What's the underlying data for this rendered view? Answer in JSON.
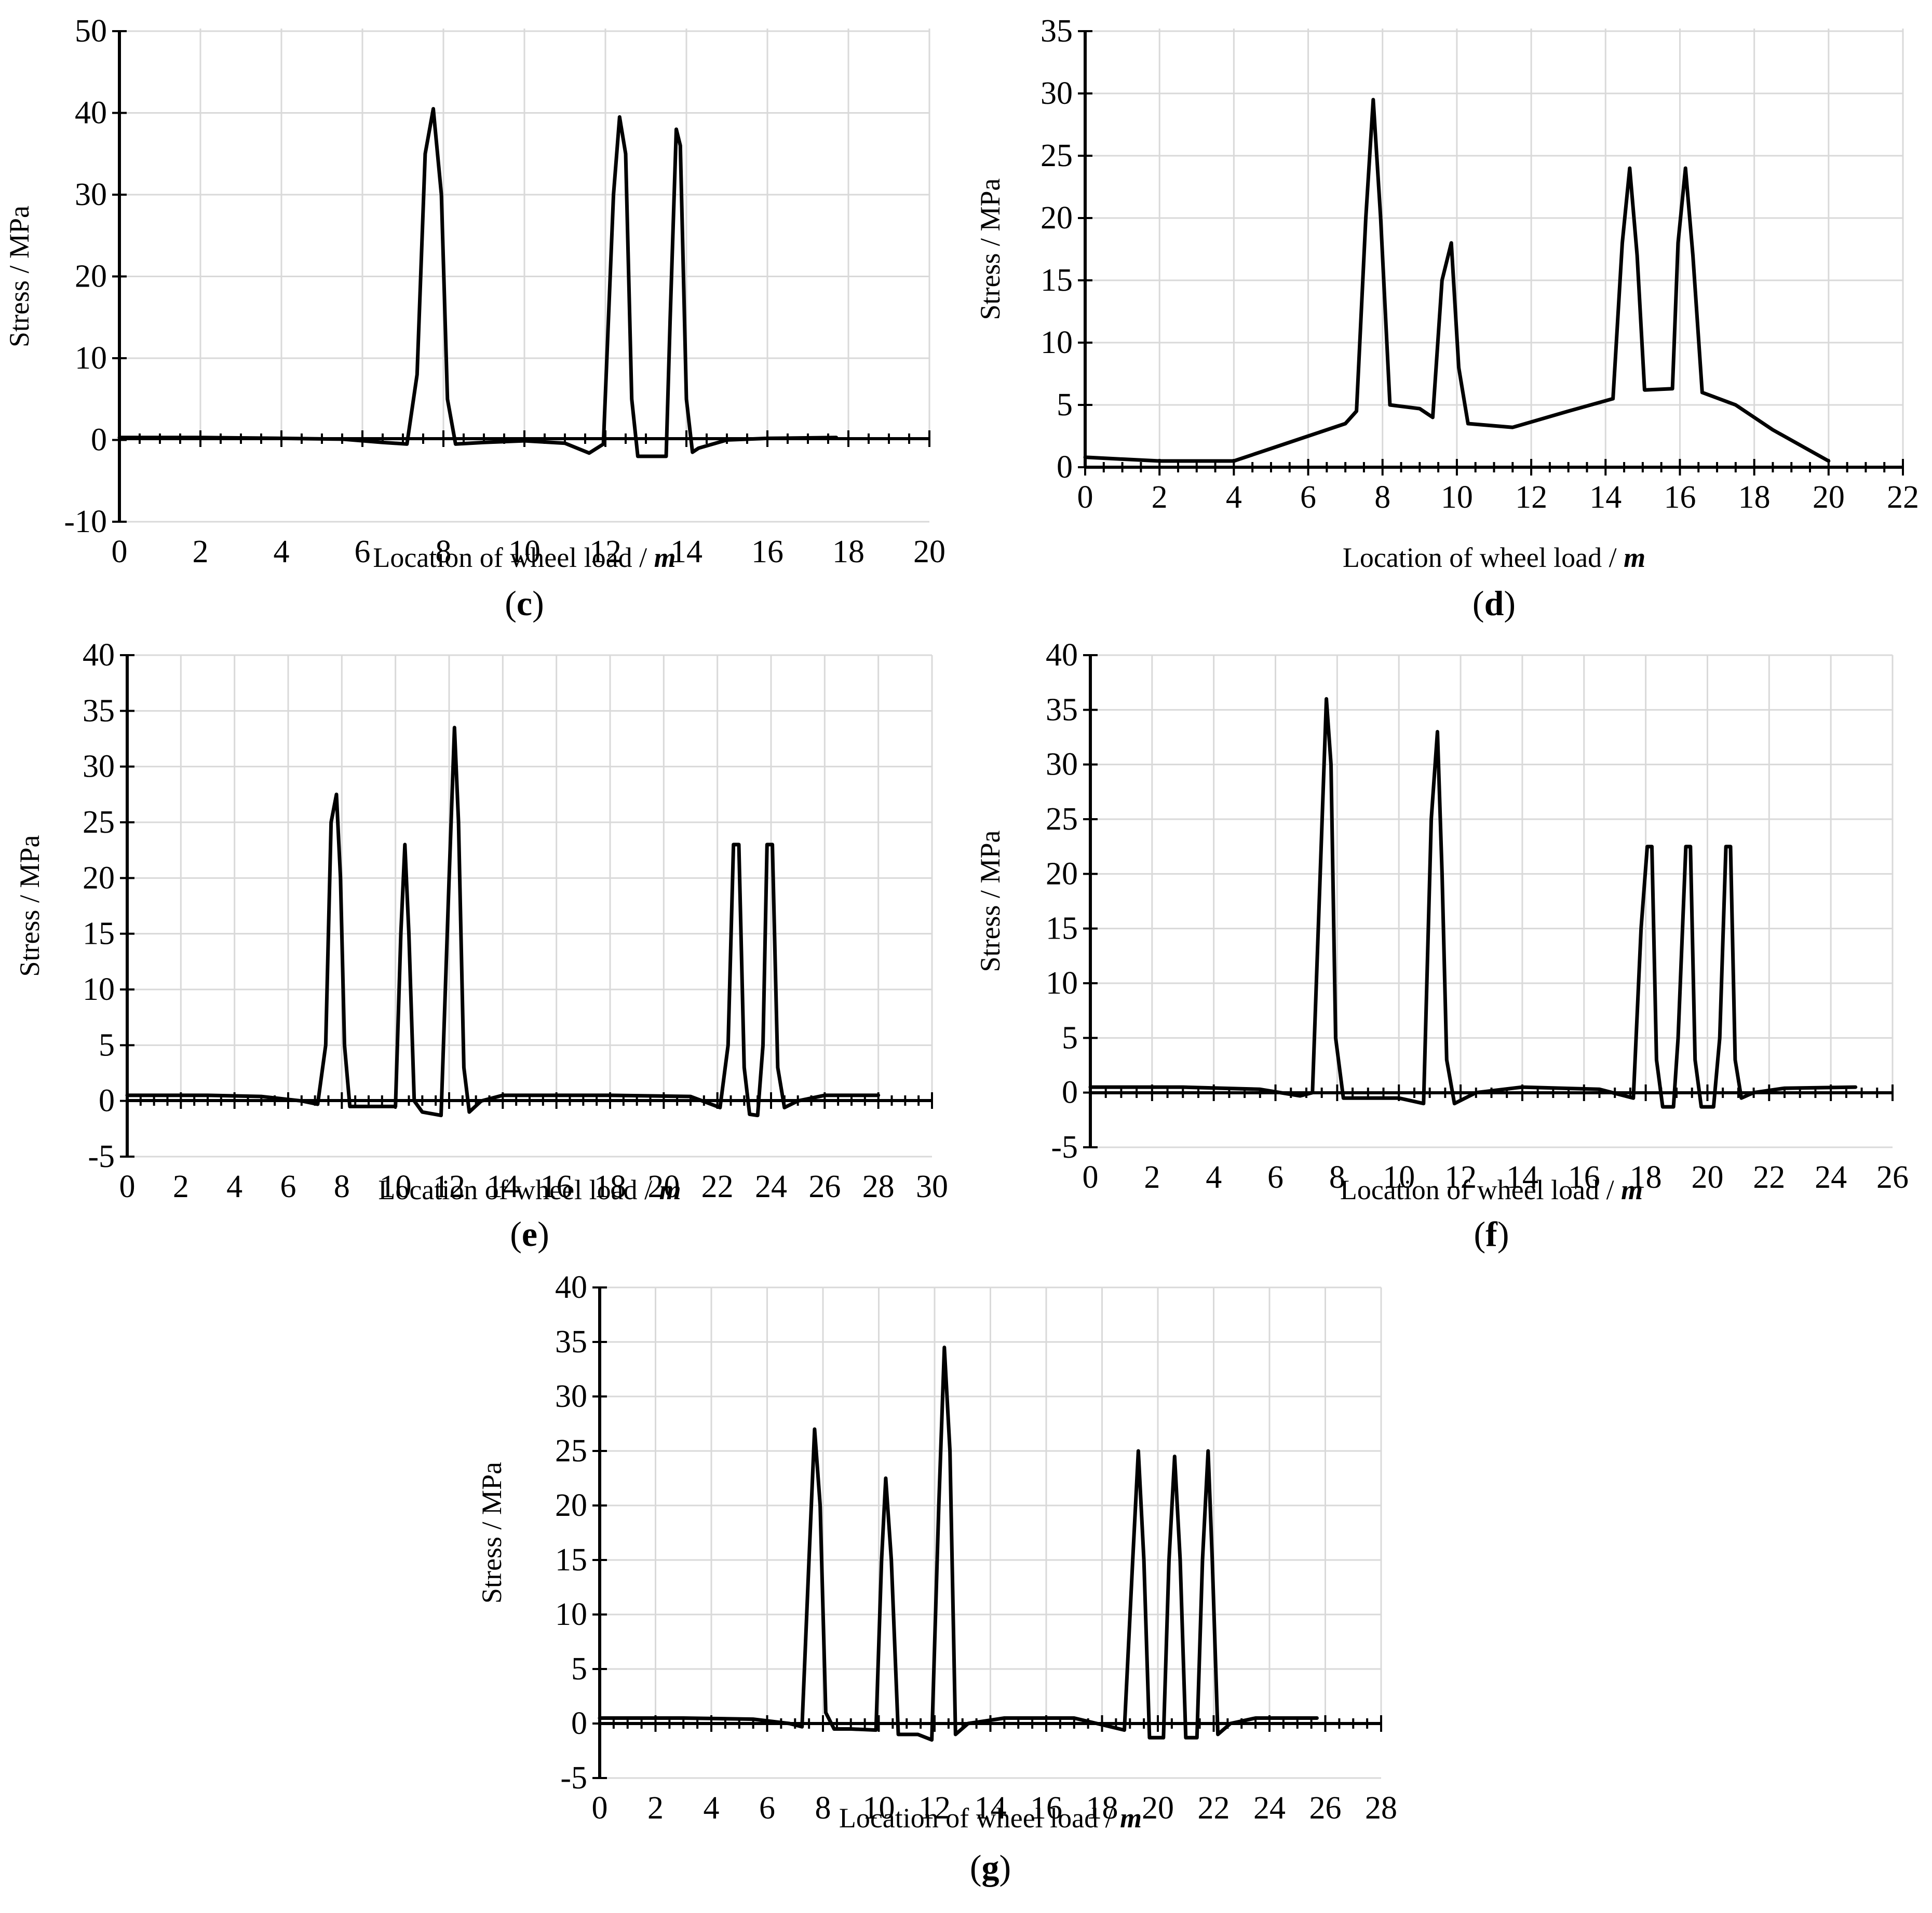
{
  "chart_data": [
    {
      "id": "c",
      "panel_label": "c",
      "type": "line",
      "xlabel": "Location of wheel load /",
      "xunit": "m",
      "ylabel": "Stress / MPa",
      "xlim": [
        0,
        20
      ],
      "ylim": [
        -10,
        50
      ],
      "xticks": [
        0,
        2,
        4,
        6,
        8,
        10,
        12,
        14,
        16,
        18,
        20
      ],
      "yticks": [
        -10,
        0,
        10,
        20,
        30,
        40,
        50
      ],
      "grid": true,
      "x": [
        0,
        2,
        4,
        5.5,
        6.5,
        7.1,
        7.35,
        7.55,
        7.75,
        7.95,
        8.1,
        8.3,
        9,
        10,
        11,
        11.6,
        11.95,
        12.2,
        12.35,
        12.5,
        12.65,
        12.8,
        12.9,
        13.5,
        13.6,
        13.75,
        13.85,
        14.0,
        14.15,
        14.3,
        15,
        16,
        17.7
      ],
      "y": [
        0.3,
        0.3,
        0.2,
        0.1,
        -0.3,
        -0.5,
        8,
        35,
        40.5,
        30,
        5,
        -0.5,
        -0.3,
        -0.1,
        -0.4,
        -1.6,
        -0.5,
        30,
        39.5,
        35,
        5,
        -2,
        -2,
        -2,
        15,
        38,
        36,
        5,
        -1.5,
        -1,
        0,
        0.2,
        0.3
      ],
      "series": [
        {
          "name": "Stress",
          "values": [
            0.3,
            0.3,
            0.2,
            0.1,
            -0.3,
            -0.5,
            8,
            35,
            40.5,
            30,
            5,
            -0.5,
            -0.3,
            -0.1,
            -0.4,
            -1.6,
            -0.5,
            30,
            39.5,
            35,
            5,
            -2,
            -2,
            -2,
            15,
            38,
            36,
            5,
            -1.5,
            -1,
            0,
            0.2,
            0.3
          ]
        }
      ]
    },
    {
      "id": "d",
      "panel_label": "d",
      "type": "line",
      "xlabel": "Location of wheel load /",
      "xunit": "m",
      "ylabel": "Stress / MPa",
      "xlim": [
        0,
        22
      ],
      "ylim": [
        0,
        35
      ],
      "xticks": [
        0,
        2,
        4,
        6,
        8,
        10,
        12,
        14,
        16,
        18,
        20,
        22
      ],
      "yticks": [
        0,
        5,
        10,
        15,
        20,
        25,
        30,
        35
      ],
      "grid": true,
      "x": [
        0,
        2,
        4,
        5,
        6,
        7,
        7.3,
        7.55,
        7.75,
        7.95,
        8.2,
        9,
        9.35,
        9.6,
        9.85,
        10.05,
        10.3,
        11.5,
        13,
        14.2,
        14.45,
        14.65,
        14.85,
        15.05,
        15.8,
        15.95,
        16.15,
        16.35,
        16.6,
        17.5,
        18.5,
        20
      ],
      "y": [
        0.8,
        0.5,
        0.5,
        1.5,
        2.5,
        3.5,
        4.5,
        20,
        29.5,
        20,
        5,
        4.7,
        4,
        15,
        18,
        8,
        3.5,
        3.2,
        4.5,
        5.5,
        18,
        24,
        17,
        6.2,
        6.3,
        18,
        24,
        17,
        6,
        5,
        3,
        0.5
      ],
      "series": [
        {
          "name": "Stress",
          "values": [
            0.8,
            0.5,
            0.5,
            1.5,
            2.5,
            3.5,
            4.5,
            20,
            29.5,
            20,
            5,
            4.7,
            4,
            15,
            18,
            8,
            3.5,
            3.2,
            4.5,
            5.5,
            18,
            24,
            17,
            6.2,
            6.3,
            18,
            24,
            17,
            6,
            5,
            3,
            0.5
          ]
        }
      ]
    },
    {
      "id": "e",
      "panel_label": "e",
      "type": "line",
      "xlabel": "Location of wheel load /",
      "xunit": "m",
      "ylabel": "Stress / MPa",
      "xlim": [
        0,
        30
      ],
      "ylim": [
        -5,
        40
      ],
      "xticks": [
        0,
        2,
        4,
        6,
        8,
        10,
        12,
        14,
        16,
        18,
        20,
        22,
        24,
        26,
        28,
        30
      ],
      "yticks": [
        -5,
        0,
        5,
        10,
        15,
        20,
        25,
        30,
        35,
        40
      ],
      "grid": true,
      "x": [
        0,
        3,
        5,
        6.5,
        7.1,
        7.4,
        7.6,
        7.8,
        7.95,
        8.1,
        8.3,
        9,
        10.0,
        10.2,
        10.35,
        10.5,
        10.7,
        11,
        11.7,
        12.0,
        12.2,
        12.35,
        12.55,
        12.75,
        13.2,
        14,
        18,
        21,
        22.1,
        22.4,
        22.6,
        22.8,
        23.0,
        23.2,
        23.5,
        23.7,
        23.85,
        24.05,
        24.25,
        24.5,
        25,
        26,
        28
      ],
      "y": [
        0.5,
        0.5,
        0.4,
        0,
        -0.3,
        5,
        25,
        27.5,
        20,
        5,
        -0.5,
        -0.5,
        -0.5,
        15,
        23,
        15,
        0,
        -1,
        -1.3,
        20,
        33.5,
        25,
        3,
        -1,
        0,
        0.5,
        0.5,
        0.4,
        -0.6,
        5,
        23,
        23,
        3,
        -1.2,
        -1.3,
        5,
        23,
        23,
        3,
        -0.6,
        0,
        0.5,
        0.5
      ],
      "series": [
        {
          "name": "Stress",
          "values": [
            0.5,
            0.5,
            0.4,
            0,
            -0.3,
            5,
            25,
            27.5,
            20,
            5,
            -0.5,
            -0.5,
            -0.5,
            15,
            23,
            15,
            0,
            -1,
            -1.3,
            20,
            33.5,
            25,
            3,
            -1,
            0,
            0.5,
            0.5,
            0.4,
            -0.6,
            5,
            23,
            23,
            3,
            -1.2,
            -1.3,
            5,
            23,
            23,
            3,
            -0.6,
            0,
            0.5,
            0.5
          ]
        }
      ]
    },
    {
      "id": "f",
      "panel_label": "f",
      "type": "line",
      "xlabel": "Location of wheel load /",
      "xunit": "m",
      "ylabel": "Stress / MPa",
      "xlim": [
        0,
        26
      ],
      "ylim": [
        -5,
        40
      ],
      "xticks": [
        0,
        2,
        4,
        6,
        8,
        10,
        12,
        14,
        16,
        18,
        20,
        22,
        24,
        26
      ],
      "yticks": [
        -5,
        0,
        5,
        10,
        15,
        20,
        25,
        30,
        35,
        40
      ],
      "grid": true,
      "x": [
        0,
        3,
        5.5,
        6.8,
        7.2,
        7.45,
        7.65,
        7.8,
        7.95,
        8.2,
        9,
        10,
        10.8,
        11.05,
        11.25,
        11.4,
        11.55,
        11.8,
        12.5,
        14,
        16.5,
        17.6,
        17.85,
        18.05,
        18.2,
        18.35,
        18.55,
        18.9,
        19.05,
        19.3,
        19.45,
        19.6,
        19.8,
        20.2,
        20.4,
        20.6,
        20.75,
        20.9,
        21.1,
        21.5,
        22.5,
        24.8
      ],
      "y": [
        0.5,
        0.5,
        0.3,
        -0.3,
        0,
        20,
        36,
        30,
        5,
        -0.5,
        -0.5,
        -0.5,
        -1,
        25,
        33,
        20,
        3,
        -1,
        0,
        0.5,
        0.3,
        -0.5,
        15,
        22.5,
        22.5,
        3,
        -1.3,
        -1.3,
        5,
        22.5,
        22.5,
        3,
        -1.3,
        -1.3,
        5,
        22.5,
        22.5,
        3,
        -0.5,
        0,
        0.4,
        0.5
      ],
      "series": [
        {
          "name": "Stress",
          "values": [
            0.5,
            0.5,
            0.3,
            -0.3,
            0,
            20,
            36,
            30,
            5,
            -0.5,
            -0.5,
            -0.5,
            -1,
            25,
            33,
            20,
            3,
            -1,
            0,
            0.5,
            0.3,
            -0.5,
            15,
            22.5,
            22.5,
            3,
            -1.3,
            -1.3,
            5,
            22.5,
            22.5,
            3,
            -1.3,
            -1.3,
            5,
            22.5,
            22.5,
            3,
            -0.5,
            0,
            0.4,
            0.5
          ]
        }
      ]
    },
    {
      "id": "g",
      "panel_label": "g",
      "type": "line",
      "xlabel": "Location of wheel load /",
      "xunit": "m",
      "ylabel": "Stress / MPa",
      "xlim": [
        0,
        28
      ],
      "ylim": [
        -5,
        40
      ],
      "xticks": [
        0,
        2,
        4,
        6,
        8,
        10,
        12,
        14,
        16,
        18,
        20,
        22,
        24,
        26,
        28
      ],
      "yticks": [
        -5,
        0,
        5,
        10,
        15,
        20,
        25,
        30,
        35,
        40
      ],
      "grid": true,
      "x": [
        0,
        3,
        5.5,
        6.8,
        7.25,
        7.5,
        7.7,
        7.9,
        8.1,
        8.4,
        9,
        9.9,
        10.1,
        10.25,
        10.45,
        10.7,
        11.4,
        11.9,
        12.15,
        12.35,
        12.55,
        12.75,
        13.2,
        14.5,
        17,
        18.8,
        19.1,
        19.3,
        19.5,
        19.7,
        20.2,
        20.4,
        20.6,
        20.8,
        21.0,
        21.4,
        21.6,
        21.8,
        21.95,
        22.15,
        22.6,
        23.5,
        25.7
      ],
      "y": [
        0.5,
        0.5,
        0.4,
        0,
        -0.3,
        15,
        27,
        20,
        1,
        -0.5,
        -0.5,
        -0.6,
        15,
        22.5,
        15,
        -1,
        -1,
        -1.5,
        20,
        34.5,
        25,
        -1,
        0,
        0.5,
        0.5,
        -0.6,
        15,
        25,
        15,
        -1.3,
        -1.3,
        15,
        24.5,
        15,
        -1.3,
        -1.3,
        15,
        25,
        15,
        -1,
        0,
        0.5,
        0.5
      ],
      "series": [
        {
          "name": "Stress",
          "values": [
            0.5,
            0.5,
            0.4,
            0,
            -0.3,
            15,
            27,
            20,
            1,
            -0.5,
            -0.5,
            -0.6,
            15,
            22.5,
            15,
            -1,
            -1,
            -1.5,
            20,
            34.5,
            25,
            -1,
            0,
            0.5,
            0.5,
            -0.6,
            15,
            25,
            15,
            -1.3,
            -1.3,
            15,
            24.5,
            15,
            -1.3,
            -1.3,
            15,
            25,
            15,
            -1,
            0,
            0.5,
            0.5
          ]
        }
      ]
    }
  ]
}
